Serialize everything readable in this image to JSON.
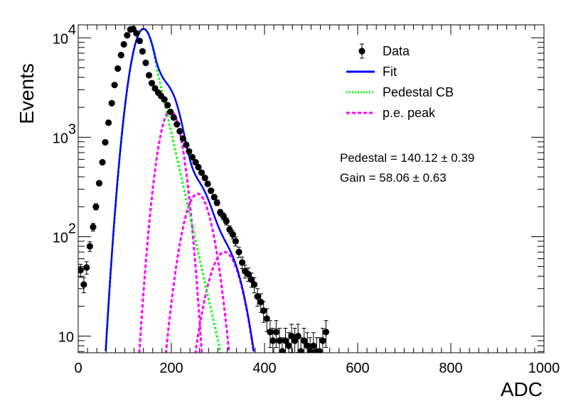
{
  "chart_data": {
    "type": "scatter",
    "xlabel": "ADC",
    "ylabel": "Events",
    "xlim": [
      0,
      1000
    ],
    "ylim": [
      6.8,
      13500
    ],
    "yscale": "log",
    "grid": false,
    "legend_position": "top-right",
    "x_ticks": [
      0,
      200,
      400,
      600,
      800,
      1000
    ],
    "y_ticks": [
      {
        "value": 10,
        "base": "10",
        "exp": ""
      },
      {
        "value": 100,
        "base": "10",
        "exp": "2"
      },
      {
        "value": 1000,
        "base": "10",
        "exp": "3"
      },
      {
        "value": 10000,
        "base": "10",
        "exp": "4"
      }
    ],
    "legend": [
      {
        "label": "Data",
        "style": "marker",
        "color": "#000000"
      },
      {
        "label": "Fit",
        "style": "solid",
        "color": "#0000ff"
      },
      {
        "label": "Pedestal CB",
        "style": "dotted",
        "color": "#00ff00"
      },
      {
        "label": "p.e. peak",
        "style": "dashed",
        "color": "#ff00ff"
      }
    ],
    "annotations": [
      {
        "label": "Pedestal = 140.12",
        "pm": "±",
        "value": "0.39"
      },
      {
        "label": "Gain = 58.06",
        "pm": "±",
        "value": "0.63"
      }
    ],
    "series": [
      {
        "name": "Data",
        "color": "#000000",
        "points": [
          [
            5,
            46
          ],
          [
            12,
            33
          ],
          [
            18,
            49
          ],
          [
            25,
            80
          ],
          [
            32,
            125
          ],
          [
            38,
            200
          ],
          [
            45,
            345
          ],
          [
            52,
            560
          ],
          [
            58,
            890
          ],
          [
            65,
            1400
          ],
          [
            72,
            2200
          ],
          [
            78,
            3350
          ],
          [
            85,
            4900
          ],
          [
            92,
            6700
          ],
          [
            98,
            8600
          ],
          [
            105,
            10600
          ],
          [
            112,
            12100
          ],
          [
            118,
            12300
          ],
          [
            125,
            11100
          ],
          [
            132,
            9300
          ],
          [
            138,
            7300
          ],
          [
            145,
            5600
          ],
          [
            152,
            4200
          ],
          [
            158,
            3500
          ],
          [
            165,
            3100
          ],
          [
            172,
            2800
          ],
          [
            178,
            2600
          ],
          [
            185,
            2400
          ],
          [
            192,
            2100
          ],
          [
            198,
            1800
          ],
          [
            205,
            1580
          ],
          [
            212,
            1350
          ],
          [
            218,
            1150
          ],
          [
            225,
            970
          ],
          [
            232,
            840
          ],
          [
            238,
            720
          ],
          [
            245,
            630
          ],
          [
            252,
            560
          ],
          [
            258,
            500
          ],
          [
            265,
            440
          ],
          [
            272,
            390
          ],
          [
            278,
            340
          ],
          [
            285,
            290
          ],
          [
            292,
            250
          ],
          [
            298,
            220
          ],
          [
            305,
            175
          ],
          [
            312,
            160
          ],
          [
            318,
            143
          ],
          [
            325,
            118
          ],
          [
            332,
            105
          ],
          [
            338,
            90
          ],
          [
            345,
            70
          ],
          [
            352,
            55
          ],
          [
            358,
            45
          ],
          [
            365,
            42
          ],
          [
            372,
            37
          ],
          [
            378,
            33
          ],
          [
            385,
            25
          ],
          [
            392,
            22
          ],
          [
            398,
            18
          ],
          [
            405,
            15
          ],
          [
            412,
            11
          ],
          [
            418,
            9
          ],
          [
            425,
            11
          ],
          [
            432,
            9
          ],
          [
            438,
            7
          ],
          [
            445,
            9
          ],
          [
            452,
            8
          ],
          [
            458,
            10
          ],
          [
            465,
            9
          ],
          [
            472,
            10
          ],
          [
            478,
            7
          ],
          [
            485,
            9
          ],
          [
            492,
            8
          ],
          [
            498,
            7
          ],
          [
            505,
            8
          ],
          [
            512,
            7
          ],
          [
            518,
            7
          ],
          [
            525,
            9
          ],
          [
            532,
            11
          ]
        ]
      }
    ],
    "components": {
      "pedestal": {
        "mu": 140.12,
        "sigma": 21,
        "amplitude": 12300,
        "tail_slope": 0.048,
        "tail_start": 155
      },
      "pe_peaks": [
        {
          "mu": 198.18,
          "sigma": 20,
          "amplitude": 1850
        },
        {
          "mu": 256.24,
          "sigma": 25,
          "amplitude": 270
        },
        {
          "mu": 314.3,
          "sigma": 29,
          "amplitude": 70
        }
      ]
    }
  }
}
